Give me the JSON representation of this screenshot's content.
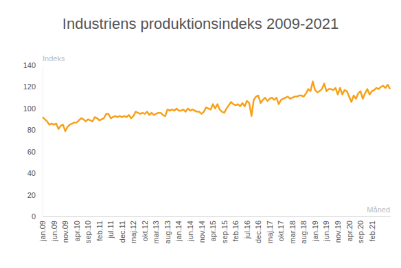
{
  "chart_data": {
    "type": "line",
    "title": "Industriens produktionsindeks 2009-2021",
    "x_label": "Måned",
    "y_label": "Indeks",
    "categories": [
      "jan.09",
      null,
      null,
      null,
      null,
      "jun.09",
      null,
      null,
      null,
      null,
      "nov.09",
      null,
      null,
      null,
      null,
      "apr.10",
      null,
      null,
      null,
      null,
      "sep.10",
      null,
      null,
      null,
      null,
      "feb.11",
      null,
      null,
      null,
      null,
      "jul.11",
      null,
      null,
      null,
      null,
      "dec.11",
      null,
      null,
      null,
      null,
      "maj.12",
      null,
      null,
      null,
      null,
      "okt.12",
      null,
      null,
      null,
      null,
      "mar.13",
      null,
      null,
      null,
      null,
      "aug.13",
      null,
      null,
      null,
      null,
      "jan.14",
      null,
      null,
      null,
      null,
      "jun.14",
      null,
      null,
      null,
      null,
      "nov.14",
      null,
      null,
      null,
      null,
      "apr.15",
      null,
      null,
      null,
      null,
      "sep.15",
      null,
      null,
      null,
      null,
      "feb.16",
      null,
      null,
      null,
      null,
      "jul.16",
      null,
      null,
      null,
      null,
      "dec.16",
      null,
      null,
      null,
      null,
      "maj.17",
      null,
      null,
      null,
      null,
      "okt.17",
      null,
      null,
      null,
      null,
      "mar.18",
      null,
      null,
      null,
      null,
      "aug.18",
      null,
      null,
      null,
      null,
      "jan.19",
      null,
      null,
      null,
      null,
      "jun.19",
      null,
      null,
      null,
      null,
      "nov.19",
      null,
      null,
      null,
      null,
      "apr.20",
      null,
      null,
      null,
      null,
      "sep.20",
      null,
      null,
      null,
      null,
      "feb.21",
      null,
      null,
      null,
      null,
      null,
      null,
      null,
      null
    ],
    "values": [
      92,
      90,
      88,
      85,
      86,
      85,
      86,
      81,
      84,
      85,
      79,
      83,
      85,
      86,
      87,
      87,
      89,
      91,
      90,
      88,
      90,
      89,
      88,
      92,
      91,
      89,
      90,
      91,
      95,
      95,
      91,
      92,
      93,
      92,
      93,
      92,
      93,
      92,
      94,
      91,
      93,
      97,
      96,
      95,
      96,
      95,
      97,
      94,
      96,
      94,
      95,
      96,
      96,
      94,
      93,
      99,
      98,
      99,
      98,
      100,
      98,
      98,
      99,
      97,
      100,
      98,
      99,
      98,
      97,
      97,
      95,
      97,
      101,
      100,
      99,
      104,
      100,
      104,
      99,
      97,
      96,
      100,
      103,
      106,
      104,
      103,
      104,
      102,
      105,
      102,
      107,
      105,
      93,
      108,
      111,
      112,
      105,
      108,
      110,
      107,
      109,
      110,
      108,
      110,
      104,
      108,
      109,
      110,
      111,
      109,
      110,
      111,
      111,
      112,
      112,
      111,
      114,
      118,
      116,
      125,
      117,
      115,
      116,
      118,
      123,
      116,
      118,
      118,
      117,
      119,
      113,
      119,
      113,
      117,
      116,
      111,
      106,
      112,
      109,
      114,
      116,
      109,
      114,
      118,
      113,
      116,
      117,
      119,
      118,
      120,
      121,
      119,
      122,
      118
    ],
    "color": "#f7a11a",
    "ylim": [
      0,
      140
    ],
    "yticks": [
      0,
      20,
      40,
      60,
      80,
      100,
      120,
      140
    ],
    "grid": false
  }
}
